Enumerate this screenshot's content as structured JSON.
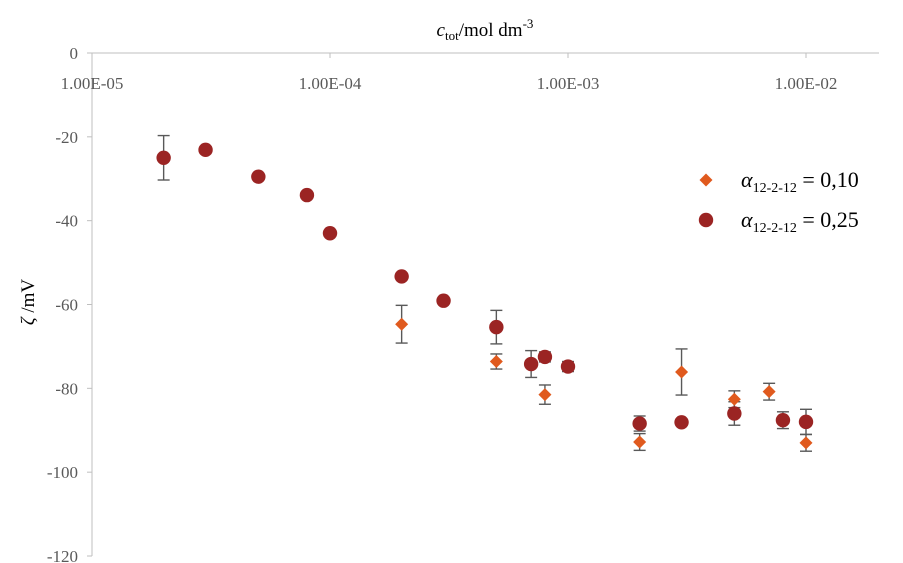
{
  "chart_data": {
    "type": "scatter",
    "x_scale": "log",
    "xlabel": {
      "var": "c",
      "sub": "tot",
      "rest": "/mol dm",
      "sup": "-3"
    },
    "ylabel": {
      "var": "ζ",
      "rest": " /mV"
    },
    "xlim": [
      1e-05,
      0.03
    ],
    "ylim": [
      -120,
      0
    ],
    "x_ticks": [
      1e-05,
      0.0001,
      0.001,
      0.01
    ],
    "x_tick_labels": [
      "1.00E-05",
      "1.00E-04",
      "1.00E-03",
      "1.00E-02"
    ],
    "y_ticks": [
      0,
      -20,
      -40,
      -60,
      -80,
      -100,
      -120
    ],
    "y_tick_labels": [
      "0",
      "-20",
      "-40",
      "-60",
      "-80",
      "-100",
      "-120"
    ],
    "x_axis_position": "top",
    "grid": false,
    "legend_position": "right",
    "series": [
      {
        "name": "0,10",
        "legend": {
          "var": "α",
          "sub": "12-2-12",
          "rest": " = 0,10"
        },
        "marker": "diamond",
        "color": "#E05A1E",
        "points": [
          {
            "x": 0.0002,
            "y": -64.7,
            "err": 4.5
          },
          {
            "x": 0.0005,
            "y": -73.6,
            "err": 1.8
          },
          {
            "x": 0.0008,
            "y": -81.5,
            "err": 2.3
          },
          {
            "x": 0.002,
            "y": -92.8,
            "err": 2.0
          },
          {
            "x": 0.003,
            "y": -76.1,
            "err": 5.5
          },
          {
            "x": 0.005,
            "y": -82.6,
            "err": 2.0
          },
          {
            "x": 0.007,
            "y": -80.8,
            "err": 2.0
          },
          {
            "x": 0.01,
            "y": -93.0,
            "err": 2.0
          }
        ]
      },
      {
        "name": "0,25",
        "legend": {
          "var": "α",
          "sub": "12-2-12",
          "rest": " = 0,25"
        },
        "marker": "circle",
        "color": "#9B2423",
        "points": [
          {
            "x": 2e-05,
            "y": -25.0,
            "err": 5.3
          },
          {
            "x": 3e-05,
            "y": -23.1,
            "err": 0
          },
          {
            "x": 5e-05,
            "y": -29.5,
            "err": 0
          },
          {
            "x": 8e-05,
            "y": -33.9,
            "err": 0
          },
          {
            "x": 0.0001,
            "y": -43.0,
            "err": 0
          },
          {
            "x": 0.0002,
            "y": -53.3,
            "err": 0
          },
          {
            "x": 0.0003,
            "y": -59.1,
            "err": 0
          },
          {
            "x": 0.0005,
            "y": -65.4,
            "err": 4.0
          },
          {
            "x": 0.0007,
            "y": -74.2,
            "err": 3.2
          },
          {
            "x": 0.0008,
            "y": -72.5,
            "err": 1.2
          },
          {
            "x": 0.001,
            "y": -74.8,
            "err": 1.2
          },
          {
            "x": 0.002,
            "y": -88.4,
            "err": 1.8
          },
          {
            "x": 0.003,
            "y": -88.1,
            "err": 0
          },
          {
            "x": 0.005,
            "y": -86.0,
            "err": 2.8
          },
          {
            "x": 0.008,
            "y": -87.6,
            "err": 2.0
          },
          {
            "x": 0.01,
            "y": -88.0,
            "err": 3.0
          }
        ]
      }
    ]
  }
}
